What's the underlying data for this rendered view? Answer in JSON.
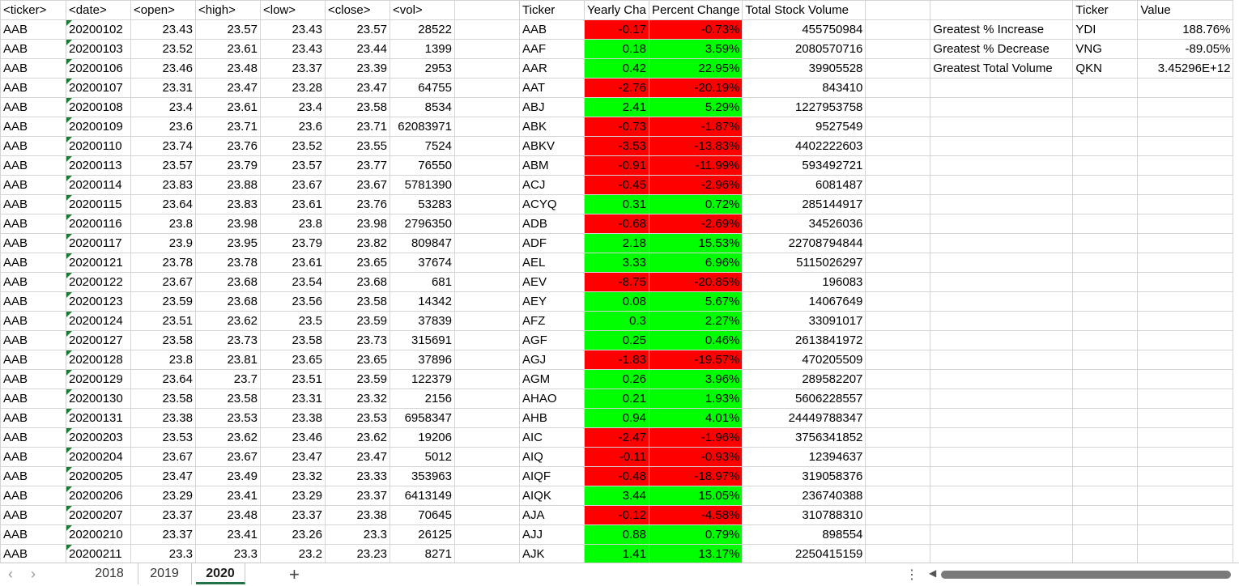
{
  "raw_headers": [
    "<ticker>",
    "<date>",
    "<open>",
    "<high>",
    "<low>",
    "<close>",
    "<vol>"
  ],
  "raw_rows": [
    [
      "AAB",
      "20200102",
      "23.43",
      "23.57",
      "23.43",
      "23.57",
      "28522"
    ],
    [
      "AAB",
      "20200103",
      "23.52",
      "23.61",
      "23.43",
      "23.44",
      "1399"
    ],
    [
      "AAB",
      "20200106",
      "23.46",
      "23.48",
      "23.37",
      "23.39",
      "2953"
    ],
    [
      "AAB",
      "20200107",
      "23.31",
      "23.47",
      "23.28",
      "23.47",
      "64755"
    ],
    [
      "AAB",
      "20200108",
      "23.4",
      "23.61",
      "23.4",
      "23.58",
      "8534"
    ],
    [
      "AAB",
      "20200109",
      "23.6",
      "23.71",
      "23.6",
      "23.71",
      "62083971"
    ],
    [
      "AAB",
      "20200110",
      "23.74",
      "23.76",
      "23.52",
      "23.55",
      "7524"
    ],
    [
      "AAB",
      "20200113",
      "23.57",
      "23.79",
      "23.57",
      "23.77",
      "76550"
    ],
    [
      "AAB",
      "20200114",
      "23.83",
      "23.88",
      "23.67",
      "23.67",
      "5781390"
    ],
    [
      "AAB",
      "20200115",
      "23.64",
      "23.83",
      "23.61",
      "23.76",
      "53283"
    ],
    [
      "AAB",
      "20200116",
      "23.8",
      "23.98",
      "23.8",
      "23.98",
      "2796350"
    ],
    [
      "AAB",
      "20200117",
      "23.9",
      "23.95",
      "23.79",
      "23.82",
      "809847"
    ],
    [
      "AAB",
      "20200121",
      "23.78",
      "23.78",
      "23.61",
      "23.65",
      "37674"
    ],
    [
      "AAB",
      "20200122",
      "23.67",
      "23.68",
      "23.54",
      "23.68",
      "681"
    ],
    [
      "AAB",
      "20200123",
      "23.59",
      "23.68",
      "23.56",
      "23.58",
      "14342"
    ],
    [
      "AAB",
      "20200124",
      "23.51",
      "23.62",
      "23.5",
      "23.59",
      "37839"
    ],
    [
      "AAB",
      "20200127",
      "23.58",
      "23.73",
      "23.58",
      "23.73",
      "315691"
    ],
    [
      "AAB",
      "20200128",
      "23.8",
      "23.81",
      "23.65",
      "23.65",
      "37896"
    ],
    [
      "AAB",
      "20200129",
      "23.64",
      "23.7",
      "23.51",
      "23.59",
      "122379"
    ],
    [
      "AAB",
      "20200130",
      "23.58",
      "23.58",
      "23.31",
      "23.32",
      "2156"
    ],
    [
      "AAB",
      "20200131",
      "23.38",
      "23.53",
      "23.38",
      "23.53",
      "6958347"
    ],
    [
      "AAB",
      "20200203",
      "23.53",
      "23.62",
      "23.46",
      "23.62",
      "19206"
    ],
    [
      "AAB",
      "20200204",
      "23.67",
      "23.67",
      "23.47",
      "23.47",
      "5012"
    ],
    [
      "AAB",
      "20200205",
      "23.47",
      "23.49",
      "23.32",
      "23.33",
      "353963"
    ],
    [
      "AAB",
      "20200206",
      "23.29",
      "23.41",
      "23.29",
      "23.37",
      "6413149"
    ],
    [
      "AAB",
      "20200207",
      "23.37",
      "23.48",
      "23.37",
      "23.38",
      "70645"
    ],
    [
      "AAB",
      "20200210",
      "23.37",
      "23.41",
      "23.26",
      "23.3",
      "26125"
    ],
    [
      "AAB",
      "20200211",
      "23.3",
      "23.3",
      "23.2",
      "23.23",
      "8271"
    ]
  ],
  "summary_headers": [
    "Ticker",
    "Yearly Cha",
    "Percent Change",
    "Total Stock Volume"
  ],
  "summary_rows": [
    [
      "AAB",
      "-0.17",
      "-0.73%",
      "455750984"
    ],
    [
      "AAF",
      "0.18",
      "3.59%",
      "2080570716"
    ],
    [
      "AAR",
      "0.42",
      "22.95%",
      "39905528"
    ],
    [
      "AAT",
      "-2.76",
      "-20.19%",
      "843410"
    ],
    [
      "ABJ",
      "2.41",
      "5.29%",
      "1227953758"
    ],
    [
      "ABK",
      "-0.73",
      "-1.87%",
      "9527549"
    ],
    [
      "ABKV",
      "-3.53",
      "-13.83%",
      "4402222603"
    ],
    [
      "ABM",
      "-0.91",
      "-11.99%",
      "593492721"
    ],
    [
      "ACJ",
      "-0.45",
      "-2.96%",
      "6081487"
    ],
    [
      "ACYQ",
      "0.31",
      "0.72%",
      "285144917"
    ],
    [
      "ADB",
      "-0.68",
      "-2.69%",
      "34526036"
    ],
    [
      "ADF",
      "2.18",
      "15.53%",
      "22708794844"
    ],
    [
      "AEL",
      "3.33",
      "6.96%",
      "5115026297"
    ],
    [
      "AEV",
      "-8.75",
      "-20.85%",
      "196083"
    ],
    [
      "AEY",
      "0.08",
      "5.67%",
      "14067649"
    ],
    [
      "AFZ",
      "0.3",
      "2.27%",
      "33091017"
    ],
    [
      "AGF",
      "0.25",
      "0.46%",
      "2613841972"
    ],
    [
      "AGJ",
      "-1.83",
      "-19.57%",
      "470205509"
    ],
    [
      "AGM",
      "0.26",
      "3.96%",
      "289582207"
    ],
    [
      "AHAO",
      "0.21",
      "1.93%",
      "5606228557"
    ],
    [
      "AHB",
      "0.94",
      "4.01%",
      "24449788347"
    ],
    [
      "AIC",
      "-2.47",
      "-1.96%",
      "3756341852"
    ],
    [
      "AIQ",
      "-0.11",
      "-0.93%",
      "12394637"
    ],
    [
      "AIQF",
      "-0.48",
      "-18.97%",
      "319058376"
    ],
    [
      "AIQK",
      "3.44",
      "15.05%",
      "236740388"
    ],
    [
      "AJA",
      "-0.12",
      "-4.58%",
      "310788310"
    ],
    [
      "AJJ",
      "0.88",
      "0.79%",
      "898554"
    ],
    [
      "AJK",
      "1.41",
      "13.17%",
      "2250415159"
    ]
  ],
  "stats_headers": [
    "Ticker",
    "Value"
  ],
  "stats_rows": [
    [
      "Greatest % Increase",
      "YDI",
      "188.76%"
    ],
    [
      "Greatest % Decrease",
      "VNG",
      "-89.05%"
    ],
    [
      "Greatest Total Volume",
      "QKN",
      "3.45296E+12"
    ]
  ],
  "colors": {
    "positive": "#00ff00",
    "negative": "#ff0000",
    "active_tab_accent": "#217346"
  },
  "sheet_tabs": [
    "2018",
    "2019",
    "2020"
  ],
  "active_tab": "2020",
  "icons": {
    "prev_sheet": "‹",
    "next_sheet": "›",
    "add_sheet": "+",
    "more_options": "⋮",
    "scroll_left": "◀"
  }
}
